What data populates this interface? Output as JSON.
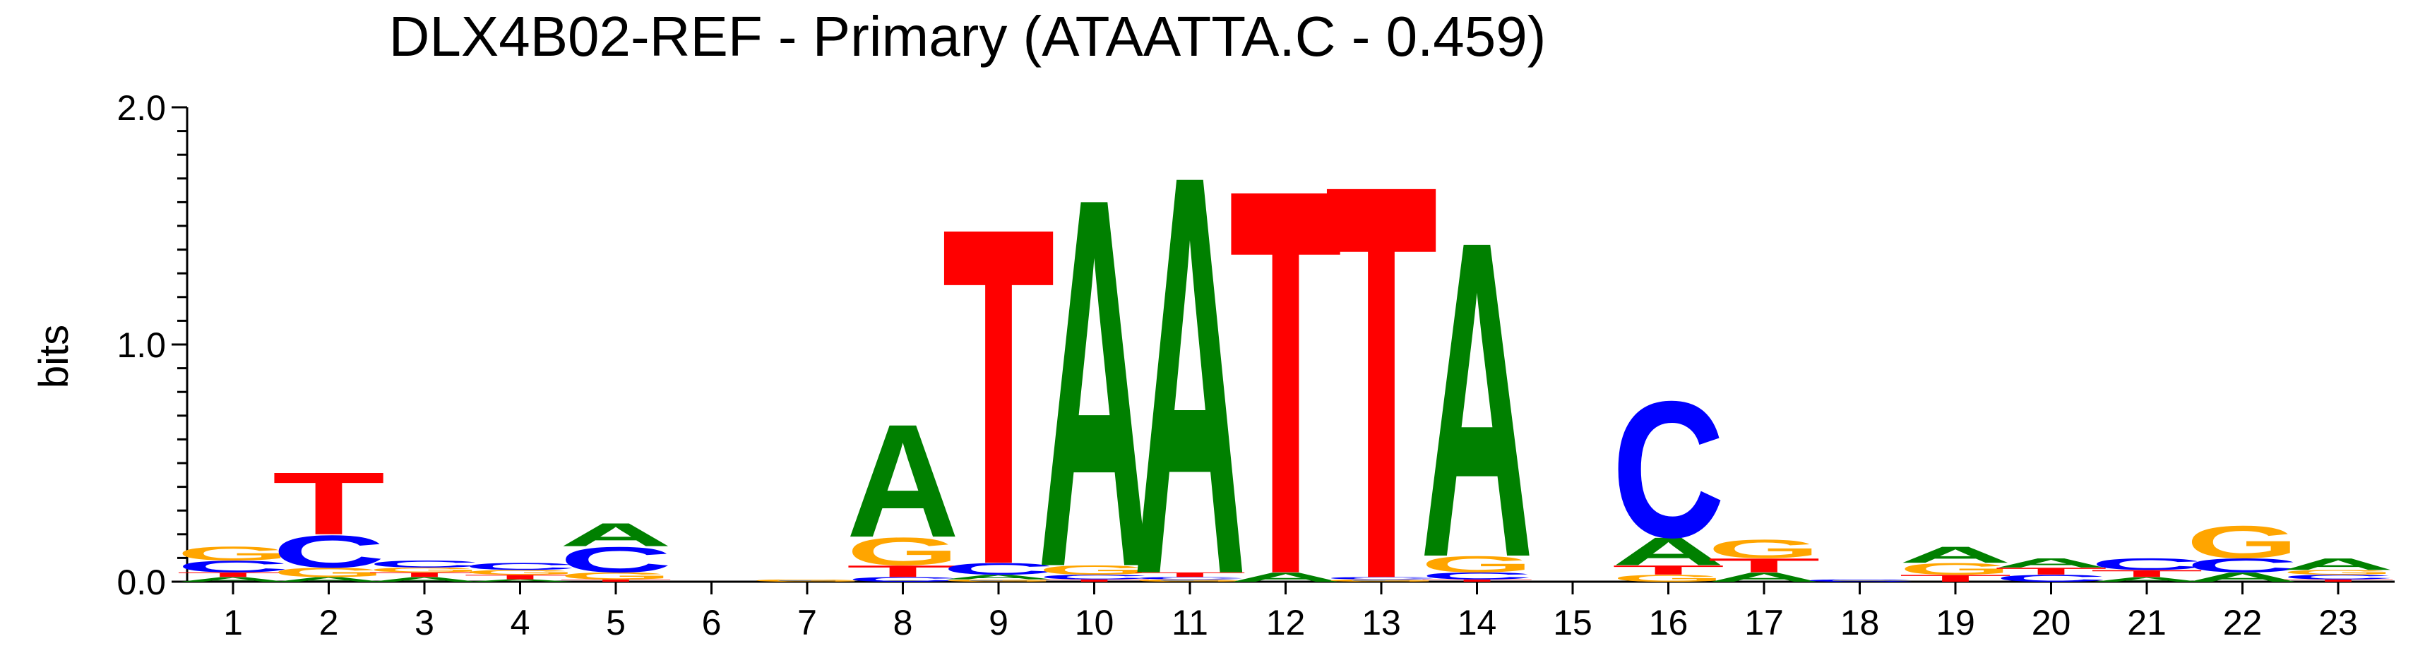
{
  "chart_data": {
    "type": "sequence-logo",
    "title": "DLX4B02-REF - Primary (ATAATTA.C - 0.459)",
    "ylabel": "bits",
    "ylim": [
      0,
      2.0
    ],
    "y_ticks": [
      "0.0",
      "1.0",
      "2.0"
    ],
    "colors": {
      "A": "#008000",
      "C": "#0000ff",
      "G": "#ffa500",
      "T": "#ff0000"
    },
    "positions": [
      {
        "label": "1",
        "letters": [
          [
            "A",
            0.02
          ],
          [
            "T",
            0.02
          ],
          [
            "C",
            0.05
          ],
          [
            "G",
            0.06
          ]
        ]
      },
      {
        "label": "2",
        "letters": [
          [
            "A",
            0.02
          ],
          [
            "G",
            0.04
          ],
          [
            "C",
            0.14
          ],
          [
            "T",
            0.27
          ]
        ]
      },
      {
        "label": "3",
        "letters": [
          [
            "A",
            0.02
          ],
          [
            "T",
            0.02
          ],
          [
            "G",
            0.02
          ],
          [
            "C",
            0.03
          ]
        ]
      },
      {
        "label": "4",
        "letters": [
          [
            "A",
            0.01
          ],
          [
            "T",
            0.02
          ],
          [
            "G",
            0.02
          ],
          [
            "C",
            0.03
          ]
        ]
      },
      {
        "label": "5",
        "letters": [
          [
            "T",
            0.01
          ],
          [
            "G",
            0.03
          ],
          [
            "C",
            0.11
          ],
          [
            "A",
            0.1
          ]
        ]
      },
      {
        "label": "6",
        "letters": []
      },
      {
        "label": "7",
        "letters": [
          [
            "G",
            0.01
          ]
        ]
      },
      {
        "label": "8",
        "letters": [
          [
            "C",
            0.02
          ],
          [
            "T",
            0.05
          ],
          [
            "G",
            0.12
          ],
          [
            "A",
            0.49
          ]
        ]
      },
      {
        "label": "9",
        "letters": [
          [
            "G",
            0.01
          ],
          [
            "A",
            0.02
          ],
          [
            "C",
            0.05
          ],
          [
            "T",
            1.46
          ]
        ]
      },
      {
        "label": "10",
        "letters": [
          [
            "T",
            0.01
          ],
          [
            "C",
            0.02
          ],
          [
            "G",
            0.04
          ],
          [
            "A",
            1.6
          ]
        ]
      },
      {
        "label": "11",
        "letters": [
          [
            "G",
            0.01
          ],
          [
            "C",
            0.01
          ],
          [
            "T",
            0.02
          ],
          [
            "A",
            1.73
          ]
        ]
      },
      {
        "label": "12",
        "letters": [
          [
            "A",
            0.04
          ],
          [
            "T",
            1.67
          ]
        ]
      },
      {
        "label": "13",
        "letters": [
          [
            "G",
            0.01
          ],
          [
            "C",
            0.01
          ],
          [
            "T",
            1.71
          ]
        ]
      },
      {
        "label": "14",
        "letters": [
          [
            "T",
            0.01
          ],
          [
            "C",
            0.03
          ],
          [
            "G",
            0.07
          ],
          [
            "A",
            1.37
          ]
        ]
      },
      {
        "label": "15",
        "letters": []
      },
      {
        "label": "16",
        "letters": [
          [
            "G",
            0.03
          ],
          [
            "T",
            0.04
          ],
          [
            "A",
            0.12
          ],
          [
            "C",
            0.59
          ]
        ]
      },
      {
        "label": "17",
        "letters": [
          [
            "A",
            0.04
          ],
          [
            "T",
            0.06
          ],
          [
            "G",
            0.08
          ]
        ]
      },
      {
        "label": "18",
        "letters": [
          [
            "C",
            0.01
          ]
        ]
      },
      {
        "label": "19",
        "letters": [
          [
            "T",
            0.03
          ],
          [
            "G",
            0.05
          ],
          [
            "A",
            0.07
          ]
        ]
      },
      {
        "label": "20",
        "letters": [
          [
            "C",
            0.03
          ],
          [
            "T",
            0.03
          ],
          [
            "A",
            0.04
          ]
        ]
      },
      {
        "label": "21",
        "letters": [
          [
            "A",
            0.02
          ],
          [
            "T",
            0.03
          ],
          [
            "C",
            0.05
          ]
        ]
      },
      {
        "label": "22",
        "letters": [
          [
            "A",
            0.04
          ],
          [
            "C",
            0.06
          ],
          [
            "G",
            0.14
          ]
        ]
      },
      {
        "label": "23",
        "letters": [
          [
            "T",
            0.01
          ],
          [
            "C",
            0.02
          ],
          [
            "G",
            0.02
          ],
          [
            "A",
            0.05
          ]
        ]
      }
    ]
  }
}
